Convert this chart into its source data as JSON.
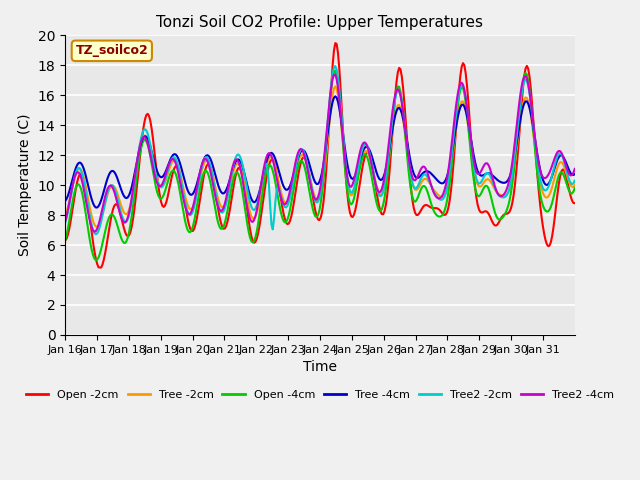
{
  "title": "Tonzi Soil CO2 Profile: Upper Temperatures",
  "xlabel": "Time",
  "ylabel": "Soil Temperature (C)",
  "ylim": [
    0,
    20
  ],
  "yticks": [
    0,
    2,
    4,
    6,
    8,
    10,
    12,
    14,
    16,
    18,
    20
  ],
  "xtick_positions": [
    0,
    1,
    2,
    3,
    4,
    5,
    6,
    7,
    8,
    9,
    10,
    11,
    12,
    13,
    14,
    15
  ],
  "xtick_labels": [
    "Jan 16",
    "Jan 17",
    "Jan 18",
    "Jan 19",
    "Jan 20",
    "Jan 21",
    "Jan 22",
    "Jan 23",
    "Jan 24",
    "Jan 25",
    "Jan 26",
    "Jan 27",
    "Jan 28",
    "Jan 29",
    "Jan 30",
    "Jan 31"
  ],
  "legend_label": "TZ_soilco2",
  "series": {
    "Open -2cm": {
      "color": "#ff0000",
      "lw": 1.5
    },
    "Tree -2cm": {
      "color": "#ff9900",
      "lw": 1.5
    },
    "Open -4cm": {
      "color": "#00cc00",
      "lw": 1.5
    },
    "Tree -4cm": {
      "color": "#0000cc",
      "lw": 1.5
    },
    "Tree2 -2cm": {
      "color": "#00cccc",
      "lw": 1.5
    },
    "Tree2 -4cm": {
      "color": "#cc00cc",
      "lw": 1.5
    }
  },
  "bg_color": "#e8e8e8",
  "grid_color": "#ffffff",
  "fig_color": "#f0f0f0"
}
